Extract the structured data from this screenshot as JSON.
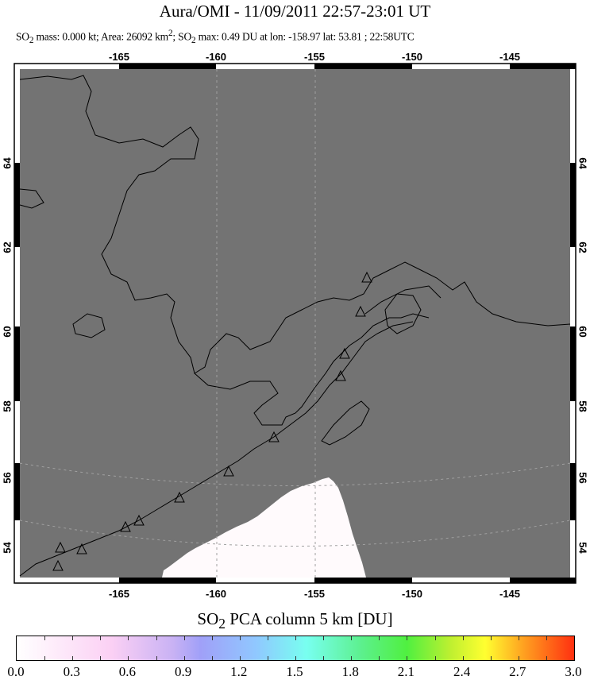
{
  "title": "Aura/OMI - 11/09/2011 22:57-23:01 UT",
  "subtitle": {
    "so2_label": "SO",
    "mass_text": " mass: 0.000 kt; Area: 26092 km",
    "area_sup": "2",
    "max_text": "; SO",
    "max_rest": " max: 0.49 DU at lon: -158.97 lat: 53.81 ; 22:58UTC",
    "sub2": "2"
  },
  "map": {
    "background_color": "#737373",
    "coast_color": "#000000",
    "lon_labels": [
      "-165",
      "-160",
      "-155",
      "-150",
      "-145"
    ],
    "lat_labels": [
      "64",
      "62",
      "60",
      "58",
      "56",
      "54"
    ],
    "features": [
      "coastlines",
      "volcano-markers",
      "so2-swath"
    ]
  },
  "colorbar": {
    "title_prefix": "SO",
    "title_sub": "2",
    "title_rest": " PCA column 5 km [DU]",
    "labels": [
      "0.0",
      "0.3",
      "0.6",
      "0.9",
      "1.2",
      "1.5",
      "1.8",
      "2.1",
      "2.4",
      "2.7",
      "3.0"
    ],
    "range": [
      0.0,
      3.0
    ]
  }
}
